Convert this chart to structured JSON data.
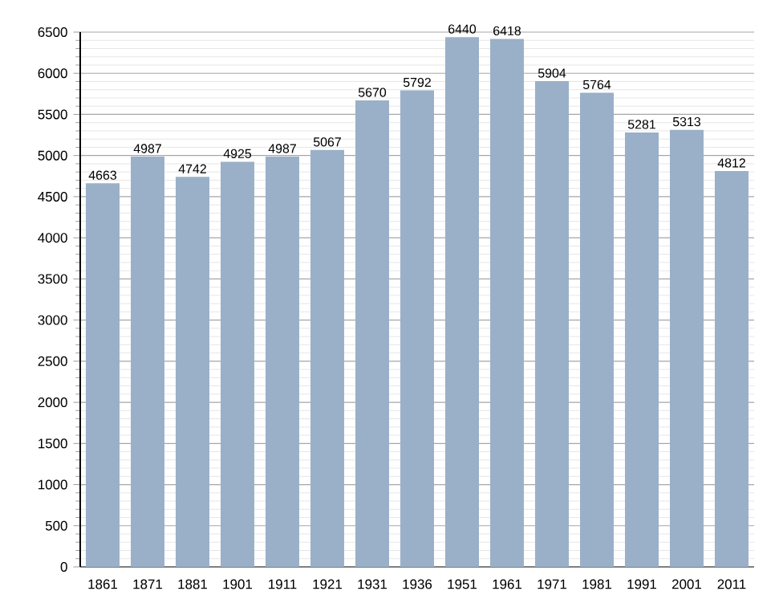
{
  "chart_data": {
    "type": "bar",
    "categories": [
      "1861",
      "1871",
      "1881",
      "1901",
      "1911",
      "1921",
      "1931",
      "1936",
      "1951",
      "1961",
      "1971",
      "1981",
      "1991",
      "2001",
      "2011"
    ],
    "values": [
      4663,
      4987,
      4742,
      4925,
      4987,
      5067,
      5670,
      5792,
      6440,
      6418,
      5904,
      5764,
      5281,
      5313,
      4812
    ],
    "color": "#9ab0c8",
    "ylim": [
      0,
      6500
    ],
    "yticks": [
      0,
      500,
      1000,
      1500,
      2000,
      2500,
      3000,
      3500,
      4000,
      4500,
      5000,
      5500,
      6000,
      6500
    ],
    "grid": "y",
    "data_labels": true
  }
}
